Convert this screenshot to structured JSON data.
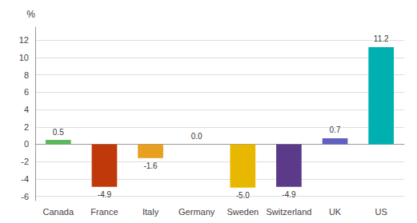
{
  "chart_data": {
    "type": "bar",
    "categories": [
      "Canada",
      "France",
      "Italy",
      "Germany",
      "Sweden",
      "Switzerland",
      "UK",
      "US"
    ],
    "values": [
      0.5,
      -4.9,
      -1.6,
      0.0,
      -5.0,
      -4.9,
      0.7,
      11.2
    ],
    "value_labels": [
      "0.5",
      "-4.9",
      "-1.6",
      "0.0",
      "-5.0",
      "-4.9",
      "0.7",
      "11.2"
    ],
    "colors": [
      "#5cb85c",
      "#c0390a",
      "#e8a020",
      "#d4b800",
      "#e8b800",
      "#5b3a8a",
      "#6060c0",
      "#00b0b0"
    ],
    "ylabel": "%",
    "ylim": [
      -6.5,
      13.5
    ],
    "yticks": [
      -6,
      -4,
      -2,
      0,
      2,
      4,
      6,
      8,
      10,
      12
    ],
    "grid": true,
    "data_labels": true
  }
}
